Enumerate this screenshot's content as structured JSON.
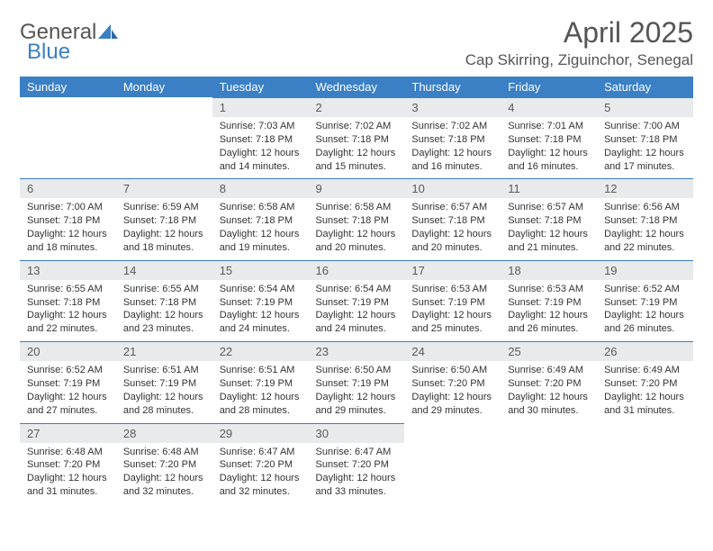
{
  "logo": {
    "text_a": "General",
    "text_b": "Blue"
  },
  "title": "April 2025",
  "location": "Cap Skirring, Ziguinchor, Senegal",
  "colors": {
    "header_bg": "#3b7fc4",
    "header_text": "#ffffff",
    "daynum_bg": "#e9eaeb",
    "daynum_border": "#3b7fc4",
    "body_text": "#333333",
    "title_text": "#555555",
    "page_bg": "#ffffff"
  },
  "weekdays": [
    "Sunday",
    "Monday",
    "Tuesday",
    "Wednesday",
    "Thursday",
    "Friday",
    "Saturday"
  ],
  "grid": [
    [
      null,
      null,
      {
        "n": "1",
        "sr": "7:03 AM",
        "ss": "7:18 PM",
        "dl": "12 hours and 14 minutes."
      },
      {
        "n": "2",
        "sr": "7:02 AM",
        "ss": "7:18 PM",
        "dl": "12 hours and 15 minutes."
      },
      {
        "n": "3",
        "sr": "7:02 AM",
        "ss": "7:18 PM",
        "dl": "12 hours and 16 minutes."
      },
      {
        "n": "4",
        "sr": "7:01 AM",
        "ss": "7:18 PM",
        "dl": "12 hours and 16 minutes."
      },
      {
        "n": "5",
        "sr": "7:00 AM",
        "ss": "7:18 PM",
        "dl": "12 hours and 17 minutes."
      }
    ],
    [
      {
        "n": "6",
        "sr": "7:00 AM",
        "ss": "7:18 PM",
        "dl": "12 hours and 18 minutes."
      },
      {
        "n": "7",
        "sr": "6:59 AM",
        "ss": "7:18 PM",
        "dl": "12 hours and 18 minutes."
      },
      {
        "n": "8",
        "sr": "6:58 AM",
        "ss": "7:18 PM",
        "dl": "12 hours and 19 minutes."
      },
      {
        "n": "9",
        "sr": "6:58 AM",
        "ss": "7:18 PM",
        "dl": "12 hours and 20 minutes."
      },
      {
        "n": "10",
        "sr": "6:57 AM",
        "ss": "7:18 PM",
        "dl": "12 hours and 20 minutes."
      },
      {
        "n": "11",
        "sr": "6:57 AM",
        "ss": "7:18 PM",
        "dl": "12 hours and 21 minutes."
      },
      {
        "n": "12",
        "sr": "6:56 AM",
        "ss": "7:18 PM",
        "dl": "12 hours and 22 minutes."
      }
    ],
    [
      {
        "n": "13",
        "sr": "6:55 AM",
        "ss": "7:18 PM",
        "dl": "12 hours and 22 minutes."
      },
      {
        "n": "14",
        "sr": "6:55 AM",
        "ss": "7:18 PM",
        "dl": "12 hours and 23 minutes."
      },
      {
        "n": "15",
        "sr": "6:54 AM",
        "ss": "7:19 PM",
        "dl": "12 hours and 24 minutes."
      },
      {
        "n": "16",
        "sr": "6:54 AM",
        "ss": "7:19 PM",
        "dl": "12 hours and 24 minutes."
      },
      {
        "n": "17",
        "sr": "6:53 AM",
        "ss": "7:19 PM",
        "dl": "12 hours and 25 minutes."
      },
      {
        "n": "18",
        "sr": "6:53 AM",
        "ss": "7:19 PM",
        "dl": "12 hours and 26 minutes."
      },
      {
        "n": "19",
        "sr": "6:52 AM",
        "ss": "7:19 PM",
        "dl": "12 hours and 26 minutes."
      }
    ],
    [
      {
        "n": "20",
        "sr": "6:52 AM",
        "ss": "7:19 PM",
        "dl": "12 hours and 27 minutes."
      },
      {
        "n": "21",
        "sr": "6:51 AM",
        "ss": "7:19 PM",
        "dl": "12 hours and 28 minutes."
      },
      {
        "n": "22",
        "sr": "6:51 AM",
        "ss": "7:19 PM",
        "dl": "12 hours and 28 minutes."
      },
      {
        "n": "23",
        "sr": "6:50 AM",
        "ss": "7:19 PM",
        "dl": "12 hours and 29 minutes."
      },
      {
        "n": "24",
        "sr": "6:50 AM",
        "ss": "7:20 PM",
        "dl": "12 hours and 29 minutes."
      },
      {
        "n": "25",
        "sr": "6:49 AM",
        "ss": "7:20 PM",
        "dl": "12 hours and 30 minutes."
      },
      {
        "n": "26",
        "sr": "6:49 AM",
        "ss": "7:20 PM",
        "dl": "12 hours and 31 minutes."
      }
    ],
    [
      {
        "n": "27",
        "sr": "6:48 AM",
        "ss": "7:20 PM",
        "dl": "12 hours and 31 minutes."
      },
      {
        "n": "28",
        "sr": "6:48 AM",
        "ss": "7:20 PM",
        "dl": "12 hours and 32 minutes."
      },
      {
        "n": "29",
        "sr": "6:47 AM",
        "ss": "7:20 PM",
        "dl": "12 hours and 32 minutes."
      },
      {
        "n": "30",
        "sr": "6:47 AM",
        "ss": "7:20 PM",
        "dl": "12 hours and 33 minutes."
      },
      null,
      null,
      null
    ]
  ],
  "labels": {
    "sunrise": "Sunrise: ",
    "sunset": "Sunset: ",
    "daylight": "Daylight: "
  }
}
